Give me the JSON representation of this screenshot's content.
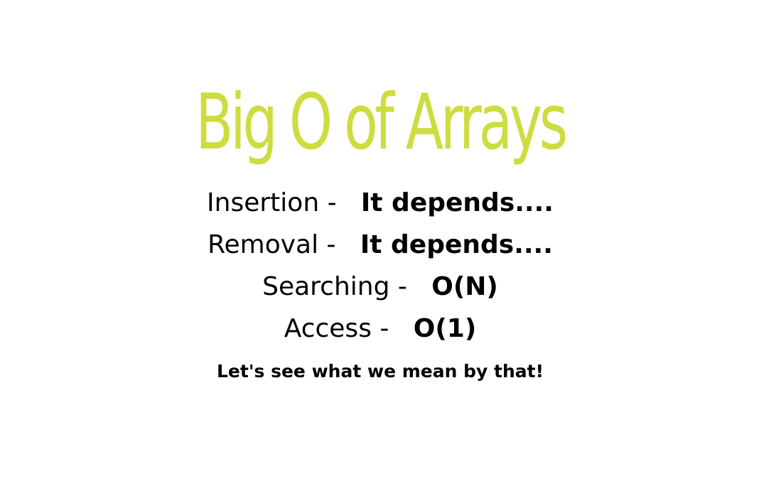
{
  "slide": {
    "title": "Big O of Arrays",
    "title_color": "#cddc3f",
    "rows": [
      {
        "operation": "Insertion -",
        "complexity": "It depends...."
      },
      {
        "operation": "Removal -",
        "complexity": "It depends...."
      },
      {
        "operation": "Searching -",
        "complexity": "O(N)"
      },
      {
        "operation": "Access -",
        "complexity": "O(1)"
      }
    ],
    "footer": "Let's see what we mean by that!"
  }
}
